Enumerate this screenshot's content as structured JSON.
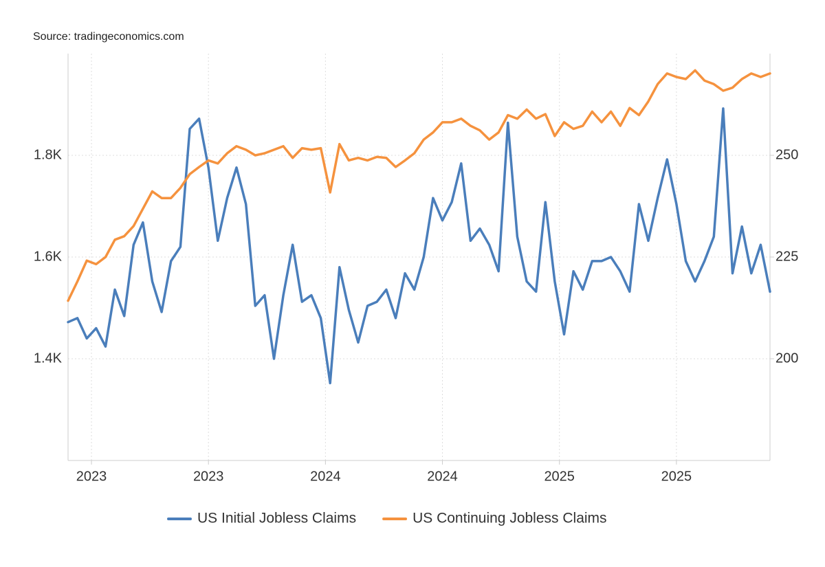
{
  "chart_data": {
    "type": "line",
    "source": "Source: tradingeconomics.com",
    "x": [
      2022.9,
      2022.94,
      2022.98,
      2023.02,
      2023.06,
      2023.1,
      2023.14,
      2023.18,
      2023.22,
      2023.26,
      2023.3,
      2023.34,
      2023.38,
      2023.42,
      2023.46,
      2023.5,
      2023.54,
      2023.58,
      2023.62,
      2023.66,
      2023.7,
      2023.74,
      2023.78,
      2023.82,
      2023.86,
      2023.9,
      2023.94,
      2023.98,
      2024.02,
      2024.06,
      2024.1,
      2024.14,
      2024.18,
      2024.22,
      2024.26,
      2024.3,
      2024.34,
      2024.38,
      2024.42,
      2024.46,
      2024.5,
      2024.54,
      2024.58,
      2024.62,
      2024.66,
      2024.7,
      2024.74,
      2024.78,
      2024.82,
      2024.86,
      2024.9,
      2024.94,
      2024.98,
      2025.02,
      2025.06,
      2025.1,
      2025.14,
      2025.18,
      2025.22,
      2025.26,
      2025.3,
      2025.34,
      2025.38,
      2025.42,
      2025.46,
      2025.5,
      2025.54,
      2025.58,
      2025.62,
      2025.66,
      2025.7,
      2025.74,
      2025.78,
      2025.82,
      2025.86,
      2025.9
    ],
    "series": [
      {
        "name": "US Initial Jobless Claims",
        "color": "#4a7ebb",
        "axis": "y2",
        "values": [
          209,
          210,
          205,
          207.5,
          203,
          217,
          210.5,
          228,
          233.5,
          219,
          211.5,
          224,
          227.5,
          256.5,
          259,
          247,
          229,
          239.5,
          247,
          238,
          213,
          215.6,
          200,
          215.6,
          228,
          214,
          215.6,
          210,
          194,
          222.5,
          212,
          204,
          213,
          214,
          217,
          210,
          221,
          217,
          225,
          239.5,
          234,
          238.5,
          248,
          229,
          232,
          228,
          221.5,
          258,
          230,
          219,
          216.5,
          238.5,
          219,
          206,
          221.5,
          217,
          224,
          224,
          225,
          221.5,
          216.5,
          238,
          229,
          239.5,
          249,
          238,
          224,
          219,
          224,
          230,
          261.5,
          221,
          232.5,
          221,
          228,
          216.5
        ]
      },
      {
        "name": "US Continuing Jobless Claims",
        "color": "#f5923e",
        "values": [
          1514,
          1552,
          1593,
          1586,
          1600,
          1634,
          1641,
          1661,
          1695,
          1729,
          1716,
          1716,
          1736,
          1763,
          1777,
          1790,
          1784,
          1804,
          1818,
          1811,
          1800,
          1804,
          1811,
          1818,
          1795,
          1814,
          1811,
          1814,
          1727,
          1822,
          1790,
          1795,
          1790,
          1797,
          1795,
          1777,
          1790,
          1804,
          1831,
          1845,
          1865,
          1865,
          1872,
          1858,
          1849,
          1831,
          1845,
          1879,
          1872,
          1890,
          1872,
          1881,
          1838,
          1865,
          1852,
          1858,
          1886,
          1865,
          1886,
          1858,
          1893,
          1879,
          1906,
          1940,
          1961,
          1954,
          1950,
          1967,
          1947,
          1940,
          1927,
          1933,
          1950,
          1961,
          1954,
          1961
        ]
      }
    ],
    "xlim": [
      2022.9,
      2025.9
    ],
    "xticks": [
      {
        "value": 2023,
        "label": "2023"
      },
      {
        "value": 2023.5,
        "label": "2023"
      },
      {
        "value": 2024,
        "label": "2024"
      },
      {
        "value": 2024.5,
        "label": "2024"
      },
      {
        "value": 2025,
        "label": "2025"
      },
      {
        "value": 2025.5,
        "label": "2025"
      }
    ],
    "ylim": [
      1200,
      2000
    ],
    "yticks": [
      {
        "value": 1400,
        "label": "1.4K"
      },
      {
        "value": 1600,
        "label": "1.6K"
      },
      {
        "value": 1800,
        "label": "1.8K"
      }
    ],
    "y2lim": [
      175,
      275
    ],
    "y2ticks": [
      200,
      225,
      250
    ],
    "grid": true,
    "legend": "bottom"
  }
}
